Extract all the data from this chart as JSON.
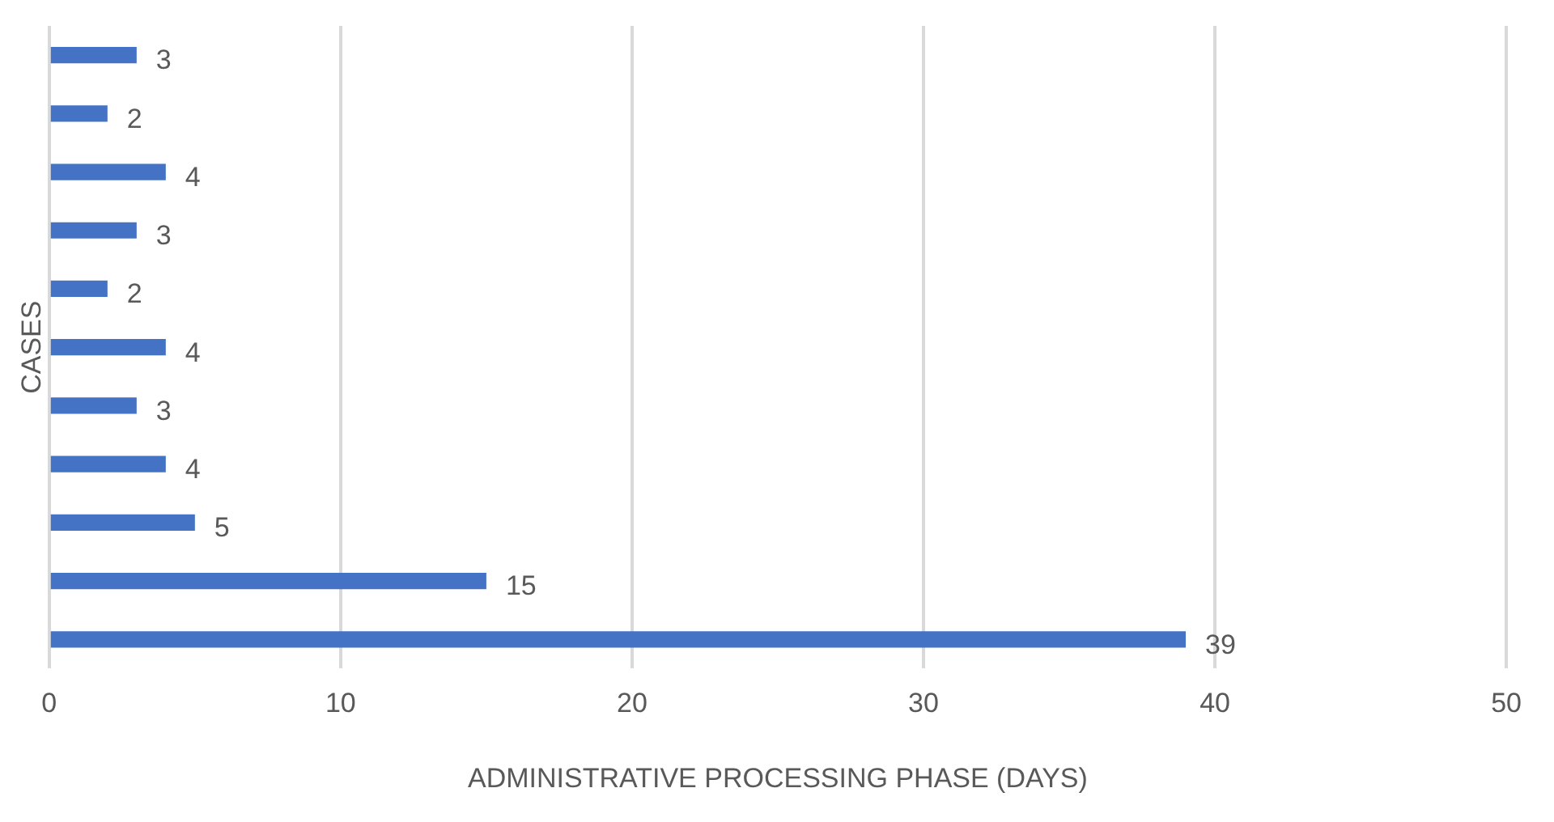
{
  "chart_data": {
    "type": "bar",
    "orientation": "horizontal",
    "xlabel": "ADMINISTRATIVE PROCESSING PHASE (DAYS)",
    "ylabel": "CASES",
    "categories": [
      null,
      null,
      null,
      null,
      null,
      null,
      null,
      null,
      null,
      null,
      null
    ],
    "values": [
      3,
      2,
      4,
      3,
      2,
      4,
      3,
      4,
      5,
      15,
      39
    ],
    "color": "#4472c4",
    "xlim": [
      0,
      50
    ],
    "xticks": [
      0,
      10,
      20,
      30,
      40,
      50
    ],
    "grid": "x",
    "data_labels": true,
    "legend": false
  }
}
